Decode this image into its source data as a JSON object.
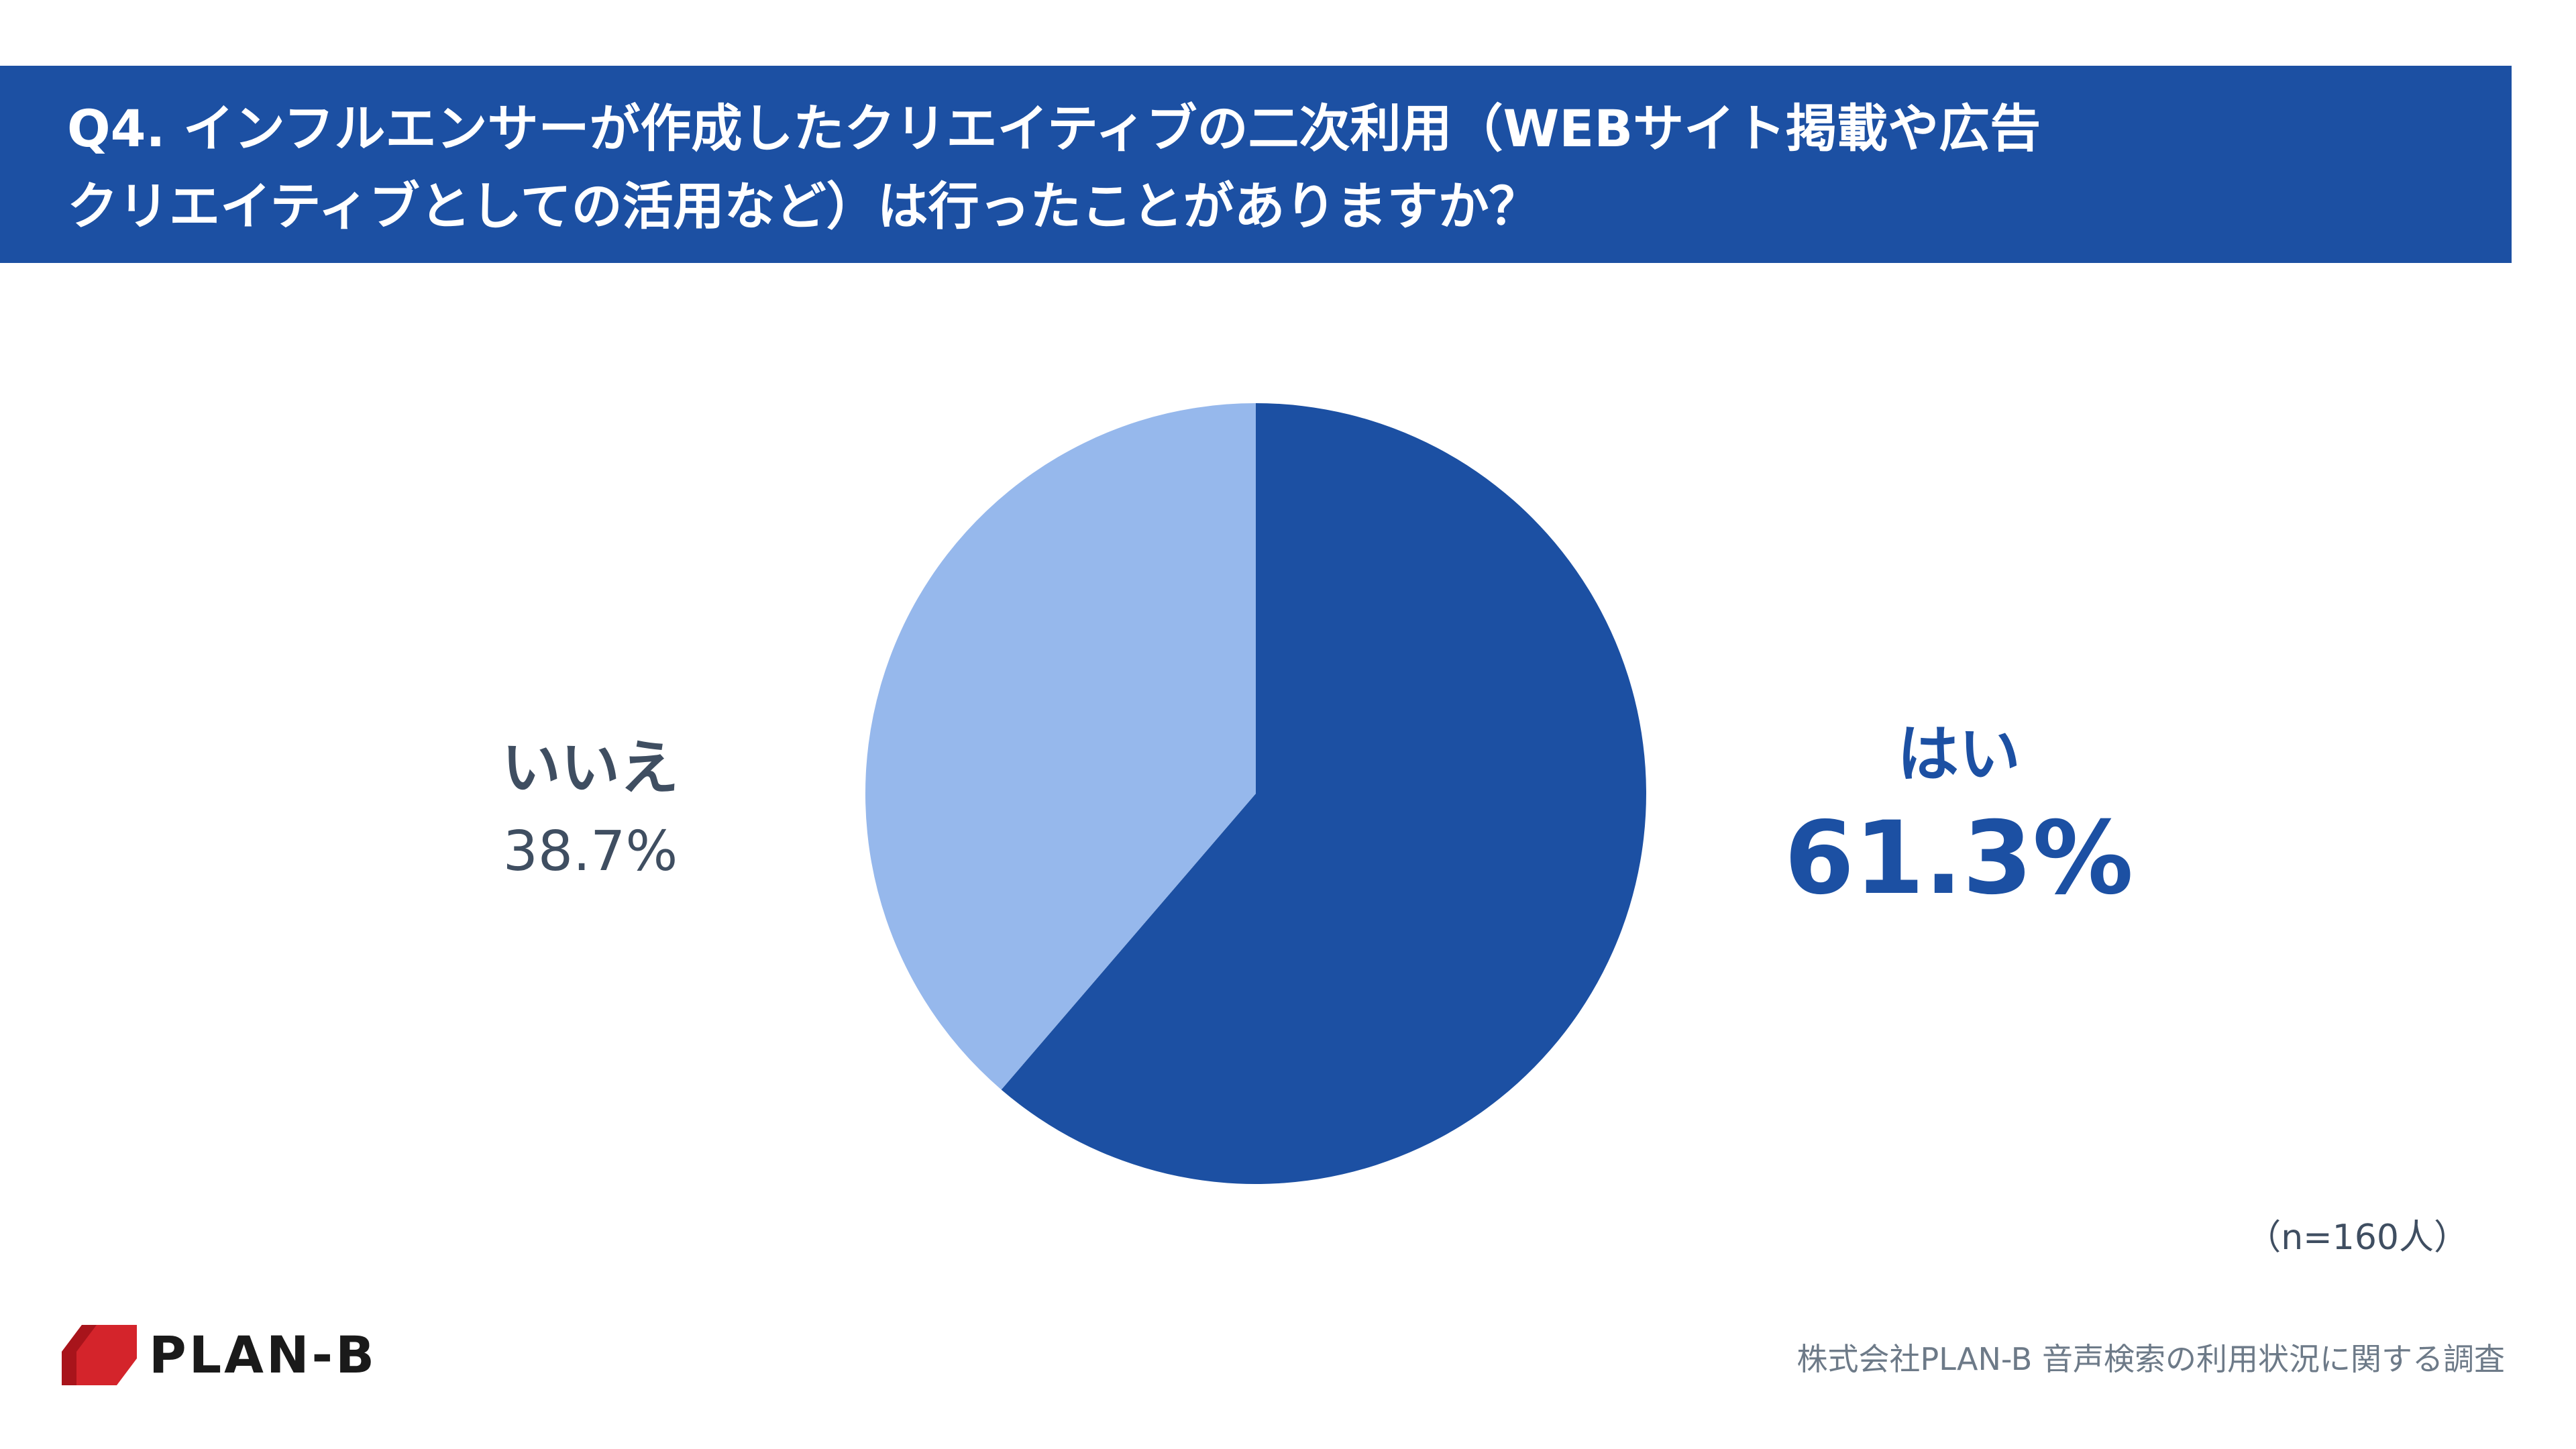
{
  "header": {
    "title_line1": "Q4. インフルエンサーが作成したクリエイティブの二次利用（WEBサイト掲載や広告",
    "title_line2": "クリエイティブとしての活用など）は行ったことがありますか？"
  },
  "chart_data": {
    "type": "pie",
    "categories": [
      "はい",
      "いいえ"
    ],
    "values": [
      61.3,
      38.7
    ],
    "value_labels": [
      "61.3%",
      "38.7%"
    ],
    "colors": [
      "#1c50a3",
      "#96b8ec"
    ],
    "start": "12 o'clock, clockwise",
    "legend": "none",
    "sample_note": "（n=160人）"
  },
  "footer": {
    "brand": "PLAN-B",
    "source": "株式会社PLAN-B 音声検索の利用状況に関する調査"
  }
}
